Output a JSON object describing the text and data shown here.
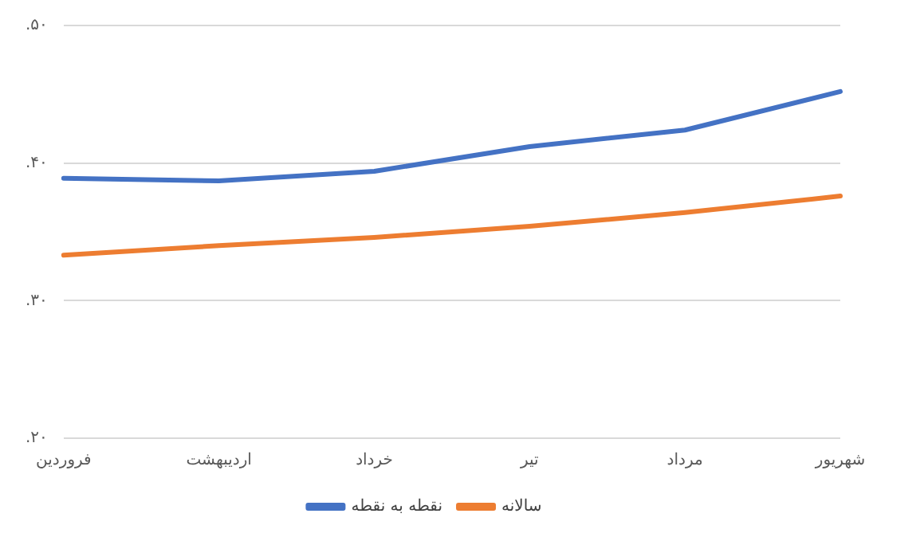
{
  "chart_data": {
    "type": "line",
    "categories": [
      "فروردین",
      "اردیبهشت",
      "خرداد",
      "تیر",
      "مرداد",
      "شهریور"
    ],
    "series": [
      {
        "name": "نقطه به نقطه",
        "color": "#4472c4",
        "values": [
          0.389,
          0.387,
          0.394,
          0.412,
          0.424,
          0.452
        ]
      },
      {
        "name": "سالانه",
        "color": "#ed7d31",
        "values": [
          0.333,
          0.34,
          0.346,
          0.354,
          0.364,
          0.376
        ]
      }
    ],
    "ylim": [
      0.2,
      0.5
    ],
    "yticks": [
      {
        "value": 0.2,
        "label": ".۲۰"
      },
      {
        "value": 0.3,
        "label": ".۳۰"
      },
      {
        "value": 0.4,
        "label": ".۴۰"
      },
      {
        "value": 0.5,
        "label": ".۵۰"
      }
    ],
    "grid": "y",
    "legend": "bottom",
    "marker": "none",
    "line_style": "solid"
  }
}
